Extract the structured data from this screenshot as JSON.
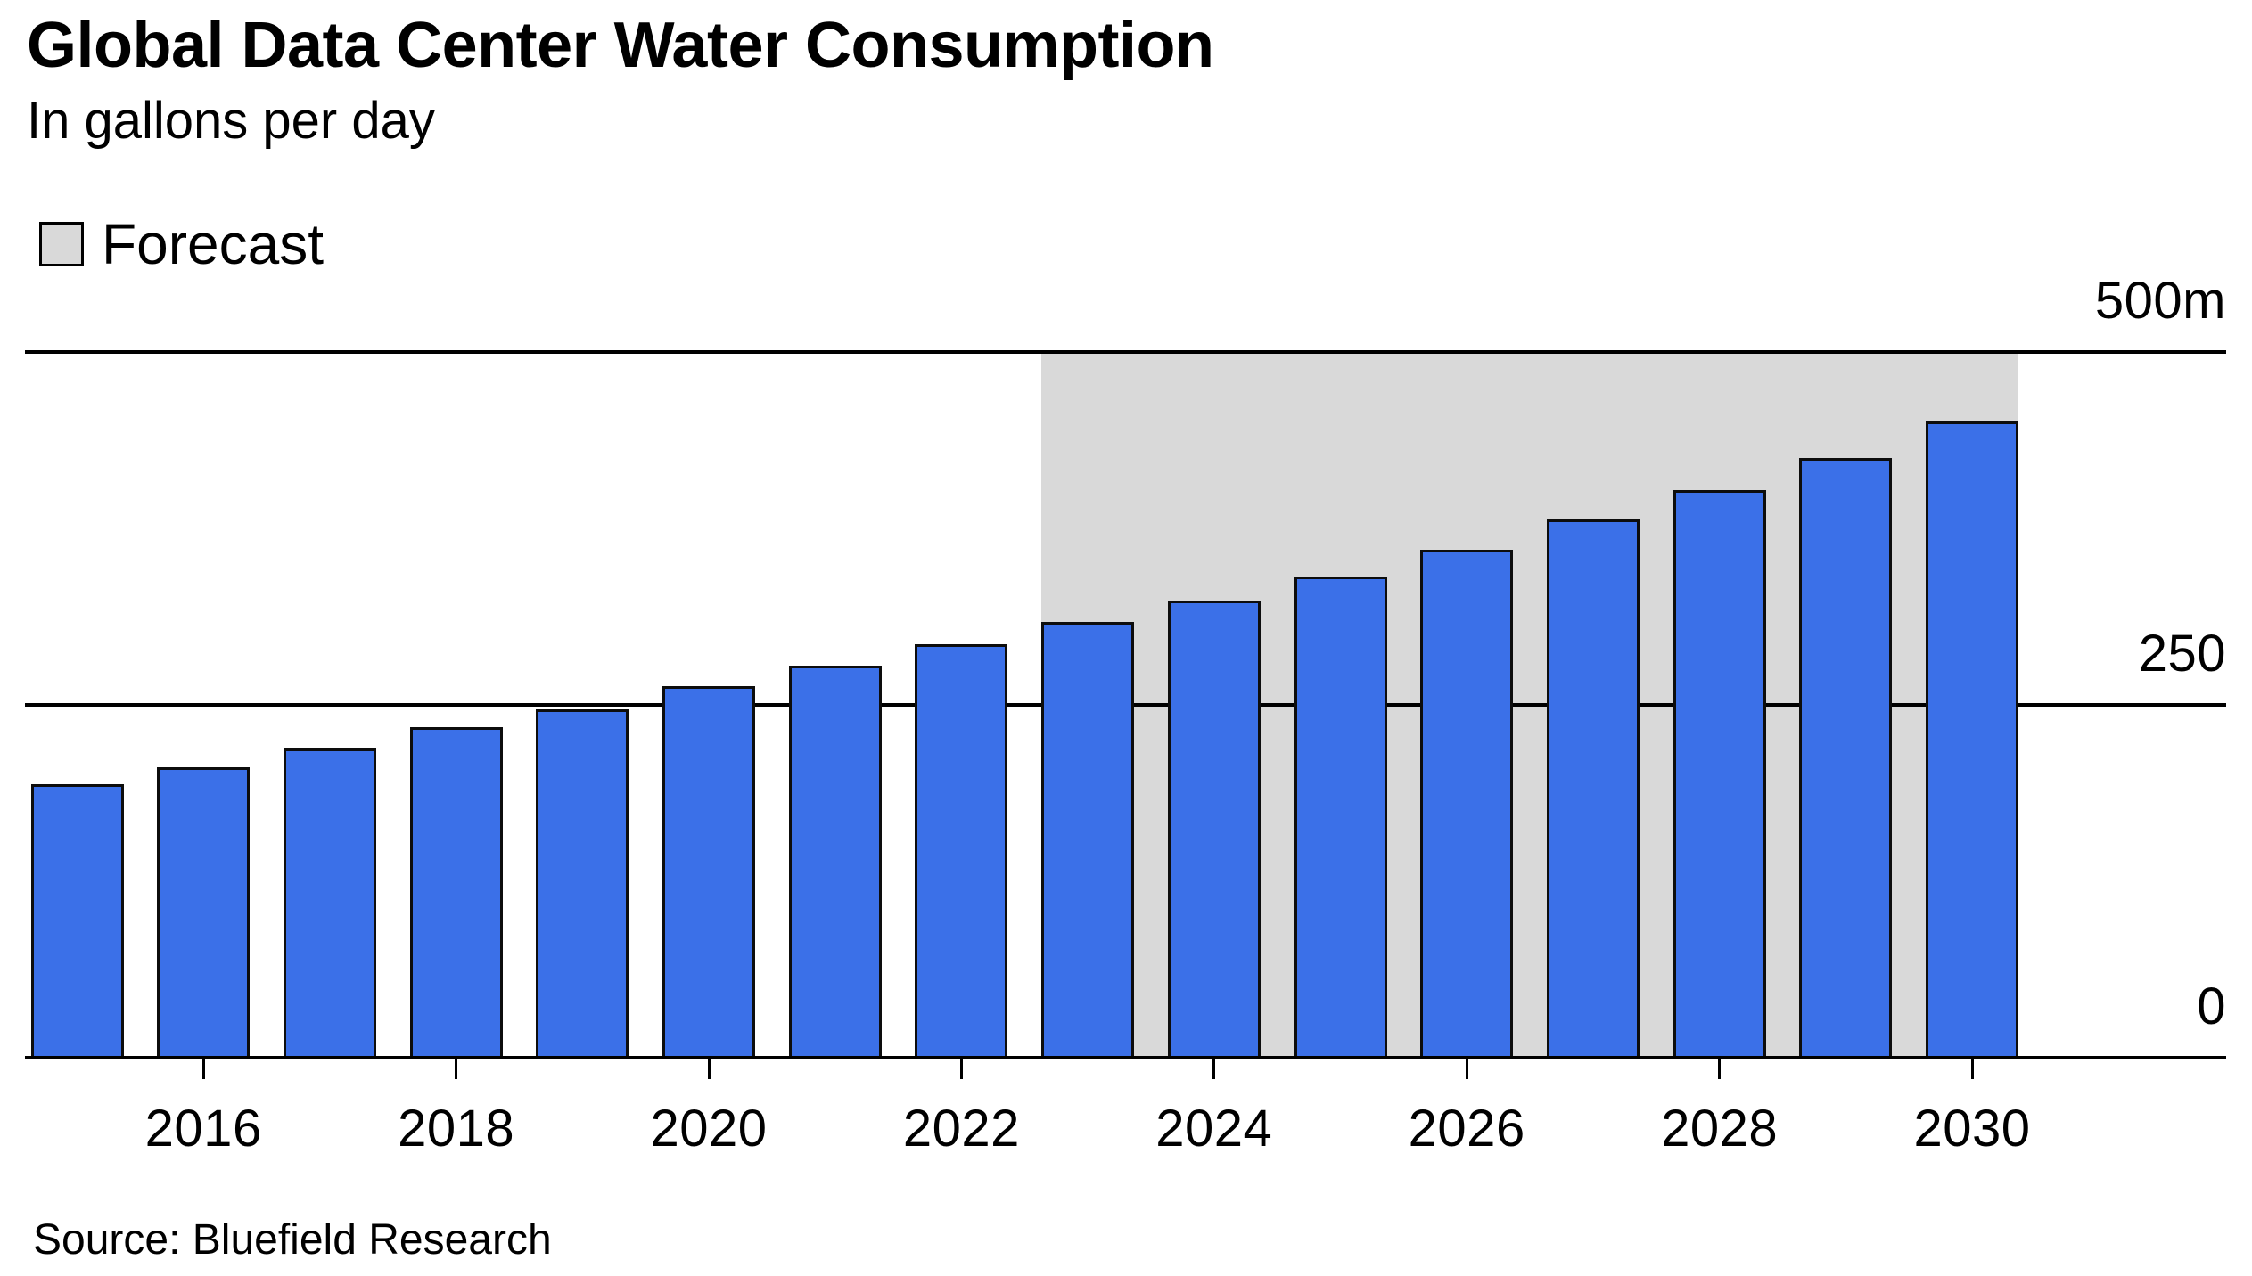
{
  "header": {
    "title": "Global Data Center Water Consumption",
    "subtitle": "In gallons per day"
  },
  "legend": {
    "label": "Forecast",
    "swatch_color": "#D9D9D9"
  },
  "chart_data": {
    "type": "bar",
    "title": "Global Data Center Water Consumption",
    "ylabel": "In gallons per day (millions)",
    "x": [
      2015,
      2016,
      2017,
      2018,
      2019,
      2020,
      2021,
      2022,
      2023,
      2024,
      2025,
      2026,
      2027,
      2028,
      2029,
      2030
    ],
    "values": [
      194,
      206,
      219,
      234,
      247,
      263,
      278,
      293,
      309,
      324,
      341,
      360,
      381,
      402,
      425,
      451
    ],
    "forecast_start_year": 2023,
    "forecast_end_year": 2030,
    "forecast_label": "Forecast",
    "ylim": [
      0,
      500
    ],
    "y_ticks": [
      {
        "label": "500m",
        "value": 500
      },
      {
        "label": "250",
        "value": 250
      },
      {
        "label": "0",
        "value": 0
      }
    ],
    "x_tick_years": [
      2016,
      2018,
      2020,
      2022,
      2024,
      2026,
      2028,
      2030
    ],
    "grid": "horizontal",
    "legend_position": "top-left",
    "colors": {
      "bar": "#3B70E8",
      "bar_outline": "#0d0d0d",
      "forecast_band": "#D9D9D9",
      "axis": "#000000"
    }
  },
  "source": {
    "text": "Source: Bluefield Research"
  }
}
